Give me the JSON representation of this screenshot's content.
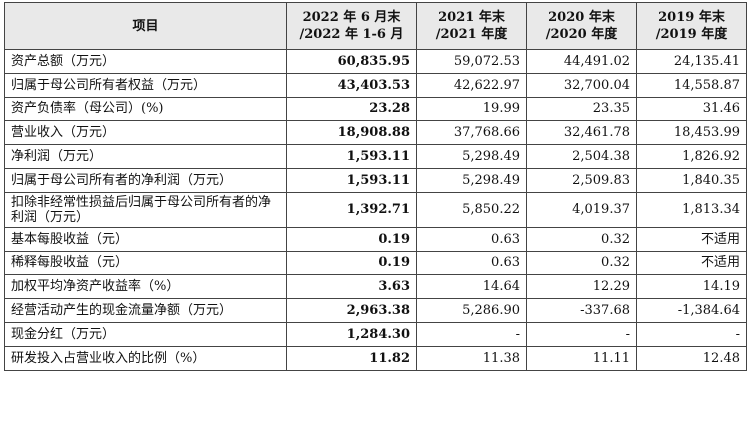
{
  "table": {
    "headers": [
      [
        "项目"
      ],
      [
        "2022 年 6 月末",
        "/2022 年 1-6 月"
      ],
      [
        "2021 年末",
        "/2021 年度"
      ],
      [
        "2020 年末",
        "/2020 年度"
      ],
      [
        "2019 年末",
        "/2019 年度"
      ]
    ],
    "rows": [
      {
        "label": "资产总额（万元）",
        "values": [
          "60,835.95",
          "59,072.53",
          "44,491.02",
          "24,135.41"
        ]
      },
      {
        "label": "归属于母公司所有者权益（万元）",
        "values": [
          "43,403.53",
          "42,622.97",
          "32,700.04",
          "14,558.87"
        ]
      },
      {
        "label": "资产负债率（母公司）(%)",
        "values": [
          "23.28",
          "19.99",
          "23.35",
          "31.46"
        ]
      },
      {
        "label": "营业收入（万元）",
        "values": [
          "18,908.88",
          "37,768.66",
          "32,461.78",
          "18,453.99"
        ]
      },
      {
        "label": "净利润（万元）",
        "values": [
          "1,593.11",
          "5,298.49",
          "2,504.38",
          "1,826.92"
        ]
      },
      {
        "label": "归属于母公司所有者的净利润（万元）",
        "values": [
          "1,593.11",
          "5,298.49",
          "2,509.83",
          "1,840.35"
        ]
      },
      {
        "label": "扣除非经常性损益后归属于母公司所有者的净利润（万元）",
        "values": [
          "1,392.71",
          "5,850.22",
          "4,019.37",
          "1,813.34"
        ]
      },
      {
        "label": "基本每股收益（元）",
        "values": [
          "0.19",
          "0.63",
          "0.32",
          "不适用"
        ]
      },
      {
        "label": "稀释每股收益（元）",
        "values": [
          "0.19",
          "0.63",
          "0.32",
          "不适用"
        ]
      },
      {
        "label": "加权平均净资产收益率（%）",
        "values": [
          "3.63",
          "14.64",
          "12.29",
          "14.19"
        ]
      },
      {
        "label": "经营活动产生的现金流量净额（万元）",
        "values": [
          "2,963.38",
          "5,286.90",
          "-337.68",
          "-1,384.64"
        ]
      },
      {
        "label": "现金分红（万元）",
        "values": [
          "1,284.30",
          "-",
          "-",
          "-"
        ]
      },
      {
        "label": "研发投入占营业收入的比例（%）",
        "values": [
          "11.82",
          "11.38",
          "11.11",
          "12.48"
        ]
      }
    ]
  },
  "colors": {
    "header_bg": "#e9e9e9",
    "border": "#444444"
  }
}
